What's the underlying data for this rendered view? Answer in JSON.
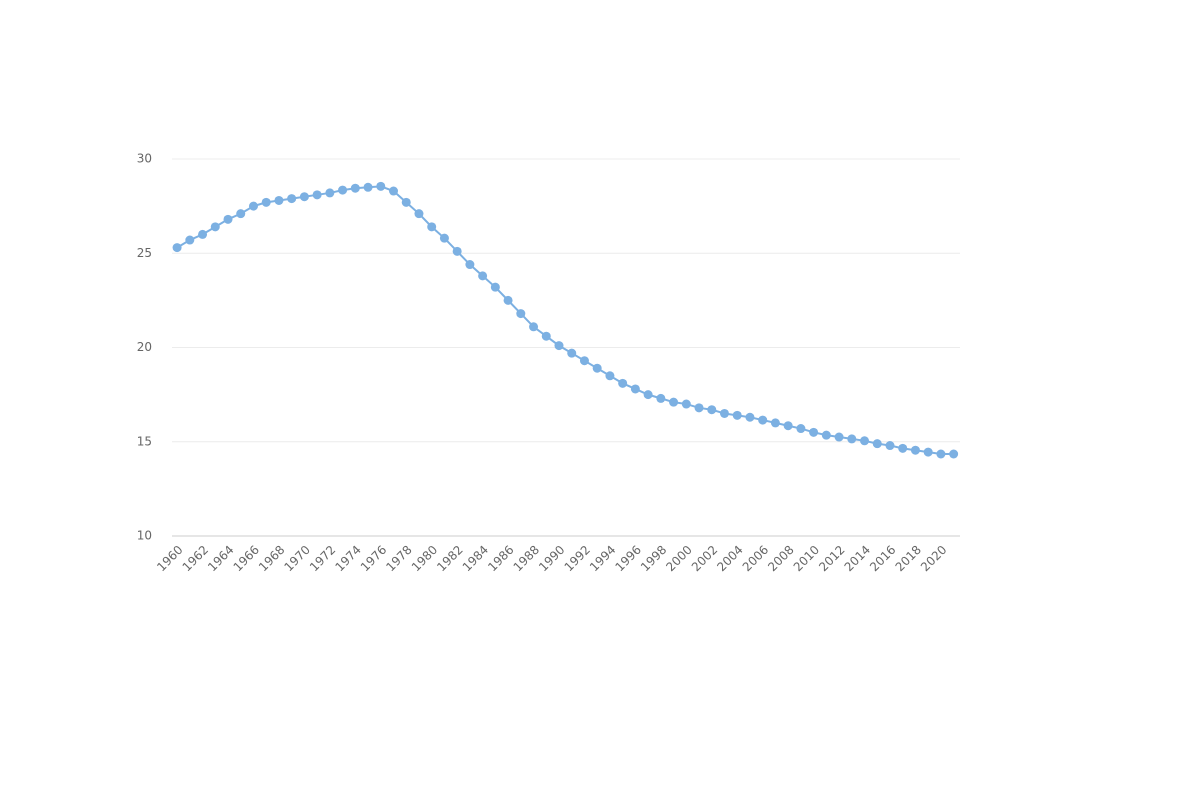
{
  "chart_data": {
    "type": "line",
    "x": [
      1960,
      1961,
      1962,
      1963,
      1964,
      1965,
      1966,
      1967,
      1968,
      1969,
      1970,
      1971,
      1972,
      1973,
      1974,
      1975,
      1976,
      1977,
      1978,
      1979,
      1980,
      1981,
      1982,
      1983,
      1984,
      1985,
      1986,
      1987,
      1988,
      1989,
      1990,
      1991,
      1992,
      1993,
      1994,
      1995,
      1996,
      1997,
      1998,
      1999,
      2000,
      2001,
      2002,
      2003,
      2004,
      2005,
      2006,
      2007,
      2008,
      2009,
      2010,
      2011,
      2012,
      2013,
      2014,
      2015,
      2016,
      2017,
      2018,
      2019,
      2020,
      2021
    ],
    "values": [
      25.3,
      25.7,
      26.0,
      26.4,
      26.8,
      27.1,
      27.5,
      27.7,
      27.8,
      27.9,
      28.0,
      28.1,
      28.2,
      28.35,
      28.45,
      28.5,
      28.55,
      28.3,
      27.7,
      27.1,
      26.4,
      25.8,
      25.1,
      24.4,
      23.8,
      23.2,
      22.5,
      21.8,
      21.1,
      20.6,
      20.1,
      19.7,
      19.3,
      18.9,
      18.5,
      18.1,
      17.8,
      17.5,
      17.3,
      17.1,
      17.0,
      16.8,
      16.7,
      16.5,
      16.4,
      16.3,
      16.15,
      16.0,
      15.85,
      15.7,
      15.5,
      15.35,
      15.25,
      15.15,
      15.05,
      14.9,
      14.8,
      14.65,
      14.55,
      14.45,
      14.35,
      14.35
    ],
    "color": "#7cb0e2",
    "xlim": [
      1959.6,
      2021.5
    ],
    "xticks": [
      1960,
      1962,
      1964,
      1966,
      1968,
      1970,
      1972,
      1974,
      1976,
      1978,
      1980,
      1982,
      1984,
      1986,
      1988,
      1990,
      1992,
      1994,
      1996,
      1998,
      2000,
      2002,
      2004,
      2006,
      2008,
      2010,
      2012,
      2014,
      2016,
      2018,
      2020
    ],
    "ylim": [
      10,
      30
    ],
    "yticks": [
      10,
      15,
      20,
      25,
      30
    ],
    "grid": true
  }
}
